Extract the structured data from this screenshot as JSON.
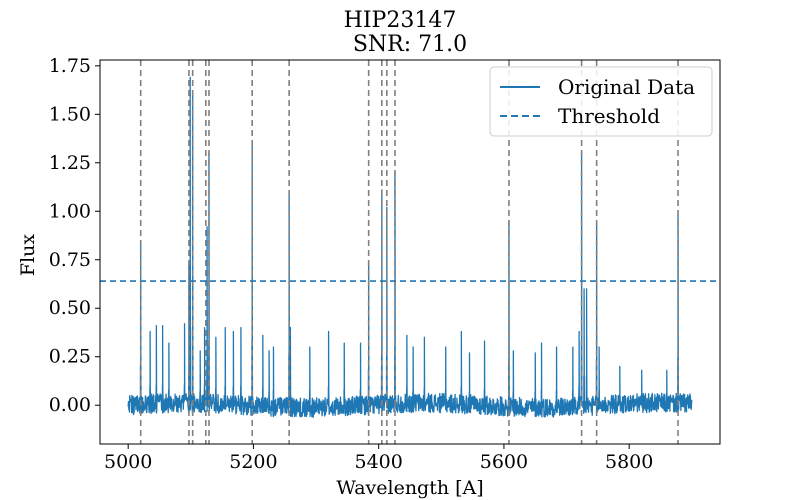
{
  "chart_data": {
    "type": "line",
    "title": "HIP23147",
    "subtitle": "SNR: 71.0",
    "xlabel": "Wavelength [A]",
    "ylabel": "Flux",
    "xlim": [
      4955,
      5945
    ],
    "ylim": [
      -0.2,
      1.78
    ],
    "xticks": [
      5000,
      5200,
      5400,
      5600,
      5800
    ],
    "yticks": [
      0.0,
      0.25,
      0.5,
      0.75,
      1.0,
      1.25,
      1.5,
      1.75
    ],
    "xtick_labels": [
      "5000",
      "5200",
      "5400",
      "5600",
      "5800"
    ],
    "ytick_labels": [
      "0.00",
      "0.25",
      "0.50",
      "0.75",
      "1.00",
      "1.25",
      "1.50",
      "1.75"
    ],
    "grid": false,
    "legend": {
      "position": "top-right",
      "entries": [
        {
          "label": "Original Data",
          "style": "solid"
        },
        {
          "label": "Threshold",
          "style": "dashed"
        }
      ]
    },
    "colors": {
      "data": "#1f77b4",
      "threshold": "#1f77b4",
      "vlines": "#808080"
    },
    "series": [
      {
        "name": "Original Data",
        "x_range": [
          5000,
          5900
        ],
        "baseline_noise_amplitude": 0.05,
        "peaks": [
          {
            "x": 5020,
            "y": 0.84
          },
          {
            "x": 5035,
            "y": 0.38
          },
          {
            "x": 5045,
            "y": 0.41
          },
          {
            "x": 5055,
            "y": 0.41
          },
          {
            "x": 5065,
            "y": 0.32
          },
          {
            "x": 5090,
            "y": 0.42
          },
          {
            "x": 5097,
            "y": 0.72
          },
          {
            "x": 5099,
            "y": 1.69
          },
          {
            "x": 5103,
            "y": 1.6
          },
          {
            "x": 5115,
            "y": 0.28
          },
          {
            "x": 5122,
            "y": 0.4
          },
          {
            "x": 5126,
            "y": 0.92
          },
          {
            "x": 5129,
            "y": 1.3
          },
          {
            "x": 5140,
            "y": 0.35
          },
          {
            "x": 5155,
            "y": 0.4
          },
          {
            "x": 5168,
            "y": 0.38
          },
          {
            "x": 5180,
            "y": 0.4
          },
          {
            "x": 5198,
            "y": 1.36
          },
          {
            "x": 5215,
            "y": 0.36
          },
          {
            "x": 5225,
            "y": 0.28
          },
          {
            "x": 5232,
            "y": 0.3
          },
          {
            "x": 5257,
            "y": 1.08
          },
          {
            "x": 5259,
            "y": 0.4
          },
          {
            "x": 5290,
            "y": 0.3
          },
          {
            "x": 5320,
            "y": 0.38
          },
          {
            "x": 5345,
            "y": 0.32
          },
          {
            "x": 5371,
            "y": 0.32
          },
          {
            "x": 5384,
            "y": 0.74
          },
          {
            "x": 5405,
            "y": 1.11
          },
          {
            "x": 5413,
            "y": 1.02
          },
          {
            "x": 5426,
            "y": 1.2
          },
          {
            "x": 5445,
            "y": 0.36
          },
          {
            "x": 5455,
            "y": 0.3
          },
          {
            "x": 5473,
            "y": 0.35
          },
          {
            "x": 5507,
            "y": 0.3
          },
          {
            "x": 5532,
            "y": 0.38
          },
          {
            "x": 5545,
            "y": 0.27
          },
          {
            "x": 5569,
            "y": 0.33
          },
          {
            "x": 5608,
            "y": 0.95
          },
          {
            "x": 5615,
            "y": 0.28
          },
          {
            "x": 5650,
            "y": 0.27
          },
          {
            "x": 5660,
            "y": 0.32
          },
          {
            "x": 5684,
            "y": 0.3
          },
          {
            "x": 5710,
            "y": 0.3
          },
          {
            "x": 5720,
            "y": 0.38
          },
          {
            "x": 5724,
            "y": 1.3
          },
          {
            "x": 5728,
            "y": 0.6
          },
          {
            "x": 5732,
            "y": 0.6
          },
          {
            "x": 5748,
            "y": 0.95
          },
          {
            "x": 5752,
            "y": 0.3
          },
          {
            "x": 5785,
            "y": 0.2
          },
          {
            "x": 5820,
            "y": 0.18
          },
          {
            "x": 5860,
            "y": 0.18
          },
          {
            "x": 5878,
            "y": 0.98
          }
        ]
      }
    ],
    "threshold": {
      "name": "Threshold",
      "y": 0.64
    },
    "vertical_lines_x": [
      5020,
      5097,
      5103,
      5124,
      5129,
      5198,
      5257,
      5384,
      5405,
      5413,
      5426,
      5608,
      5724,
      5748,
      5878
    ]
  }
}
